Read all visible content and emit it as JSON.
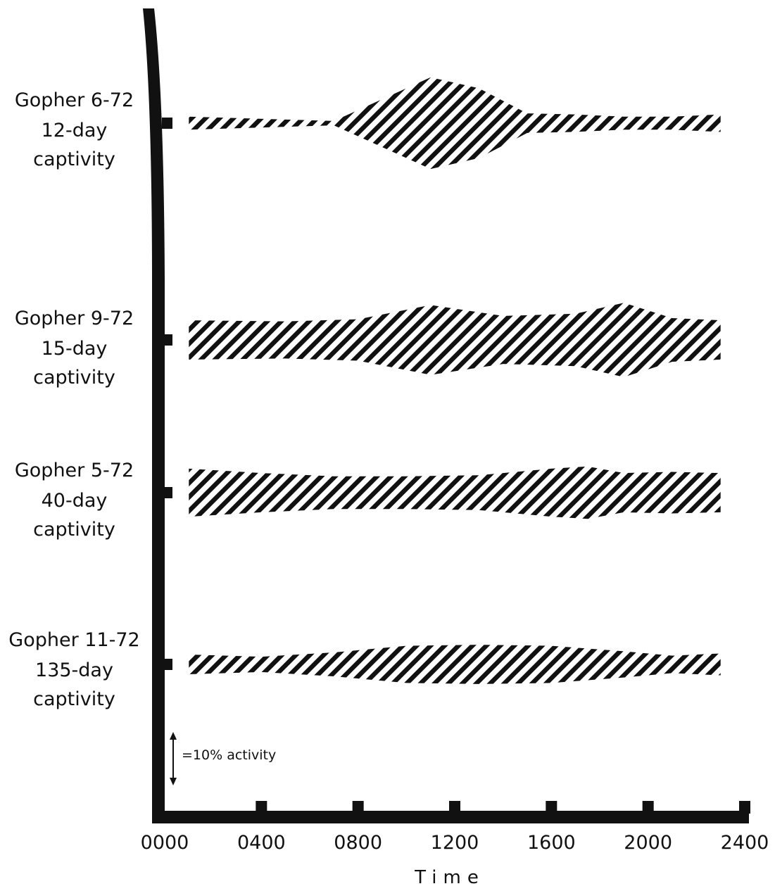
{
  "chart_data": {
    "type": "area",
    "xlabel": "Time",
    "x_ticks": [
      "0000",
      "0400",
      "0800",
      "1200",
      "1600",
      "2000",
      "2400"
    ],
    "x_tick_values": [
      0,
      400,
      800,
      1200,
      1600,
      2000,
      2400
    ],
    "scale_legend": "=10% activity",
    "scale_value": 10,
    "series": [
      {
        "name": "Gopher 6-72",
        "label2": "12-day",
        "label3": "captivity",
        "x": [
          100,
          700,
          1100,
          1300,
          1500,
          1700,
          1900,
          2100,
          2300
        ],
        "values": [
          3.0,
          1.0,
          21.0,
          16.0,
          4.5,
          4.0,
          3.0,
          3.0,
          4.0
        ]
      },
      {
        "name": "Gopher 9-72",
        "label2": "15-day",
        "label3": "captivity",
        "x": [
          100,
          500,
          800,
          1100,
          1400,
          1700,
          1900,
          2100,
          2300
        ],
        "values": [
          9.0,
          8.5,
          9.5,
          16.0,
          11.0,
          12.0,
          17.0,
          10.0,
          9.0
        ]
      },
      {
        "name": "Gopher 5-72",
        "label2": "40-day",
        "label3": "captivity",
        "x": [
          100,
          400,
          700,
          1000,
          1300,
          1600,
          1750,
          1900,
          2100,
          2300
        ],
        "values": [
          11.0,
          9.0,
          7.5,
          7.5,
          8.0,
          11.0,
          12.0,
          9.0,
          9.5,
          9.0
        ]
      },
      {
        "name": "Gopher 11-72",
        "label2": "135-day",
        "label3": "captivity",
        "x": [
          100,
          400,
          700,
          1000,
          1300,
          1600,
          1900,
          2100,
          2300
        ],
        "values": [
          4.5,
          3.5,
          5.5,
          8.5,
          9.0,
          8.5,
          6.0,
          4.0,
          5.0
        ]
      }
    ]
  }
}
